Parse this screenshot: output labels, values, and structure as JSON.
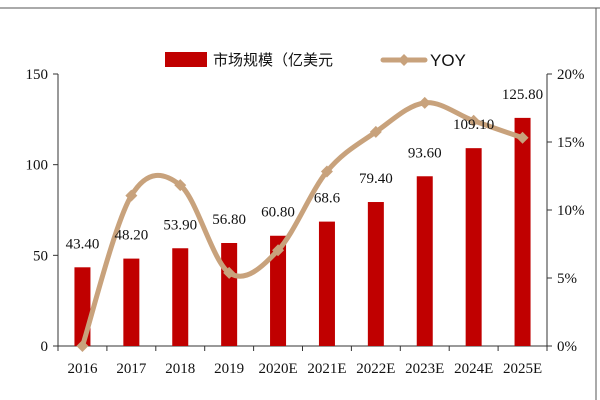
{
  "chart_data": {
    "type": "bar",
    "title": "",
    "categories": [
      "2016",
      "2017",
      "2018",
      "2019",
      "2020E",
      "2021E",
      "2022E",
      "2023E",
      "2024E",
      "2025E"
    ],
    "series": [
      {
        "name": "市场规模（亿美元",
        "type": "bar",
        "axis": "left",
        "color": "#c00000",
        "values": [
          43.4,
          48.2,
          53.9,
          56.8,
          60.8,
          68.6,
          79.4,
          93.6,
          109.1,
          125.8
        ],
        "labels": [
          "43.40",
          "48.20",
          "53.90",
          "56.80",
          "60.80",
          "68.6",
          "79.40",
          "93.60",
          "109.10",
          "125.80"
        ]
      },
      {
        "name": "YOY",
        "type": "line",
        "axis": "right",
        "color": "#c8a27c",
        "values": [
          0,
          11.06,
          11.83,
          5.38,
          7.04,
          12.83,
          15.74,
          17.88,
          16.56,
          15.31
        ]
      }
    ],
    "left_axis": {
      "ylim": [
        0,
        150
      ],
      "ticks": [
        "0",
        "50",
        "100",
        "150"
      ]
    },
    "right_axis": {
      "ylim": [
        0,
        20
      ],
      "ticks": [
        "0%",
        "5%",
        "10%",
        "15%",
        "20%"
      ]
    },
    "legend_position": "top-center",
    "grid": false
  }
}
